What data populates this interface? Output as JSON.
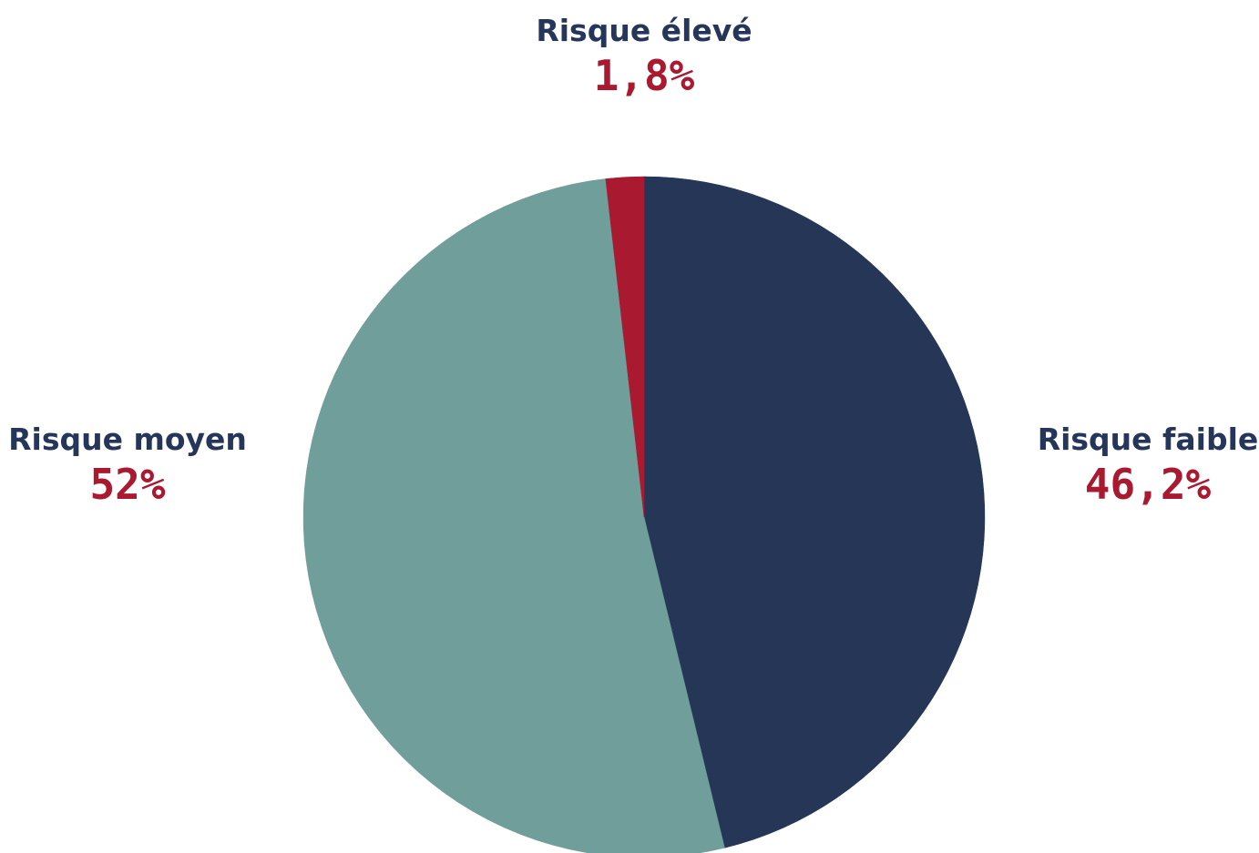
{
  "chart_data": {
    "type": "pie",
    "start": "12 o'clock",
    "direction": "clockwise",
    "slices": [
      {
        "label": "Risque faible",
        "value": 46.2,
        "value_label": "46,2%",
        "color": "#253657"
      },
      {
        "label": "Risque moyen",
        "value": 52,
        "value_label": "52%",
        "color": "#6f9e9b"
      },
      {
        "label": "Risque élevé",
        "value": 1.8,
        "value_label": "1,8%",
        "color": "#a91a31"
      }
    ],
    "legend": "none"
  }
}
